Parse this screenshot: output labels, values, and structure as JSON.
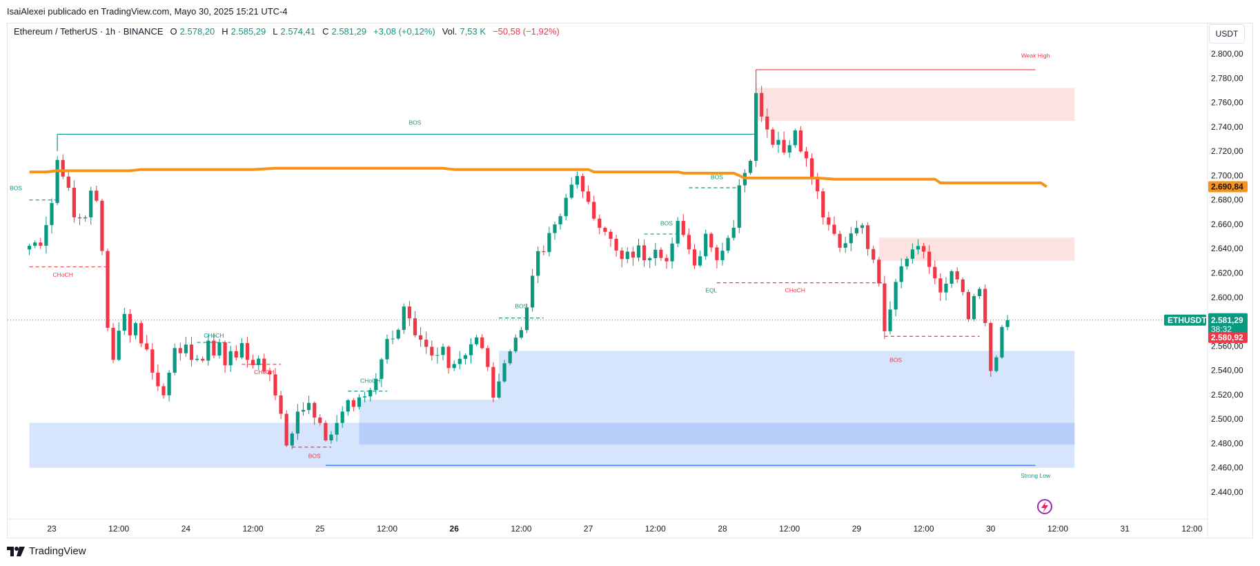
{
  "header": {
    "published_by": "IsaiAlexei publicado en TradingView.com, Mayo 30, 2025 15:21 UTC-4"
  },
  "legend": {
    "symbol": "Ethereum / TetherUS · 1h · BINANCE",
    "open_label": "O",
    "open": "2.578,20",
    "high_label": "H",
    "high": "2.585,29",
    "low_label": "L",
    "low": "2.574,41",
    "close_label": "C",
    "close": "2.581,29",
    "change": "+3,08 (+0,12%)",
    "vol_label": "Vol.",
    "vol": "7,53 K",
    "vol_change": "−50,58 (−1,92%)"
  },
  "currency_button": "USDT",
  "brand": {
    "name": "TradingView"
  },
  "colors": {
    "up": "#089981",
    "down": "#f23645",
    "ma": "#f7931a",
    "demand_zone": "#d6e4fc",
    "demand_zone_dark": "#b5cdf8",
    "supply_zone": "#fde2e2",
    "structure_bull": "#089981",
    "structure_bear": "#f23645"
  },
  "chart_data": {
    "type": "candlestick",
    "symbol": "ETHUSDT",
    "timeframe": "1h",
    "ylim": [
      2430,
      2810
    ],
    "grid": false,
    "y_ticks": [
      "2.440,00",
      "2.460,00",
      "2.480,00",
      "2.500,00",
      "2.520,00",
      "2.540,00",
      "2.560,00",
      "2.580,00",
      "2.600,00",
      "2.620,00",
      "2.640,00",
      "2.660,00",
      "2.680,00",
      "2.700,00",
      "2.720,00",
      "2.740,00",
      "2.760,00",
      "2.780,00",
      "2.800,00"
    ],
    "y_tick_values": [
      2440,
      2460,
      2480,
      2500,
      2520,
      2540,
      2560,
      2580,
      2600,
      2620,
      2640,
      2660,
      2680,
      2700,
      2720,
      2740,
      2760,
      2780,
      2800
    ],
    "x_ticks": [
      {
        "label": "23",
        "t": 0,
        "bold": false
      },
      {
        "label": "12:00",
        "t": 12,
        "bold": false
      },
      {
        "label": "24",
        "t": 24,
        "bold": false
      },
      {
        "label": "12:00",
        "t": 36,
        "bold": false
      },
      {
        "label": "25",
        "t": 48,
        "bold": false
      },
      {
        "label": "12:00",
        "t": 60,
        "bold": false
      },
      {
        "label": "26",
        "t": 72,
        "bold": true
      },
      {
        "label": "12:00",
        "t": 84,
        "bold": false
      },
      {
        "label": "27",
        "t": 96,
        "bold": false
      },
      {
        "label": "12:00",
        "t": 108,
        "bold": false
      },
      {
        "label": "28",
        "t": 120,
        "bold": false
      },
      {
        "label": "12:00",
        "t": 132,
        "bold": false
      },
      {
        "label": "29",
        "t": 144,
        "bold": false
      },
      {
        "label": "12:00",
        "t": 156,
        "bold": false
      },
      {
        "label": "30",
        "t": 168,
        "bold": false
      },
      {
        "label": "12:00",
        "t": 180,
        "bold": false
      },
      {
        "label": "31",
        "t": 192,
        "bold": false
      },
      {
        "label": "12:00",
        "t": 204,
        "bold": false
      }
    ],
    "key_points": [
      [
        -4,
        2640
      ],
      [
        -2,
        2645
      ],
      [
        0,
        2675
      ],
      [
        1,
        2715
      ],
      [
        2,
        2700
      ],
      [
        3,
        2690
      ],
      [
        4,
        2665
      ],
      [
        6,
        2668
      ],
      [
        7,
        2685
      ],
      [
        8,
        2680
      ],
      [
        9,
        2640
      ],
      [
        10,
        2575
      ],
      [
        11,
        2550
      ],
      [
        12,
        2575
      ],
      [
        13,
        2585
      ],
      [
        14,
        2570
      ],
      [
        15,
        2580
      ],
      [
        16,
        2565
      ],
      [
        17,
        2555
      ],
      [
        18,
        2540
      ],
      [
        19,
        2525
      ],
      [
        20,
        2520
      ],
      [
        21,
        2540
      ],
      [
        22,
        2558
      ],
      [
        23,
        2555
      ],
      [
        24,
        2560
      ],
      [
        25,
        2548
      ],
      [
        26,
        2552
      ],
      [
        27,
        2550
      ],
      [
        28,
        2565
      ],
      [
        29,
        2555
      ],
      [
        30,
        2560
      ],
      [
        31,
        2545
      ],
      [
        32,
        2555
      ],
      [
        33,
        2550
      ],
      [
        34,
        2560
      ],
      [
        35,
        2550
      ],
      [
        36,
        2545
      ],
      [
        37,
        2550
      ],
      [
        38,
        2540
      ],
      [
        39,
        2535
      ],
      [
        40,
        2520
      ],
      [
        41,
        2505
      ],
      [
        42,
        2480
      ],
      [
        43,
        2490
      ],
      [
        44,
        2505
      ],
      [
        45,
        2510
      ],
      [
        46,
        2515
      ],
      [
        47,
        2500
      ],
      [
        48,
        2495
      ],
      [
        49,
        2480
      ],
      [
        50,
        2485
      ],
      [
        51,
        2495
      ],
      [
        52,
        2505
      ],
      [
        53,
        2515
      ],
      [
        54,
        2510
      ],
      [
        55,
        2515
      ],
      [
        56,
        2520
      ],
      [
        57,
        2525
      ],
      [
        58,
        2535
      ],
      [
        59,
        2550
      ],
      [
        60,
        2565
      ],
      [
        61,
        2565
      ],
      [
        62,
        2575
      ],
      [
        63,
        2590
      ],
      [
        64,
        2580
      ],
      [
        65,
        2570
      ],
      [
        66,
        2565
      ],
      [
        67,
        2560
      ],
      [
        68,
        2555
      ],
      [
        69,
        2550
      ],
      [
        70,
        2560
      ],
      [
        71,
        2540
      ],
      [
        72,
        2545
      ],
      [
        73,
        2550
      ],
      [
        74,
        2555
      ],
      [
        75,
        2560
      ],
      [
        76,
        2565
      ],
      [
        77,
        2560
      ],
      [
        78,
        2540
      ],
      [
        79,
        2520
      ],
      [
        80,
        2530
      ],
      [
        81,
        2545
      ],
      [
        82,
        2555
      ],
      [
        83,
        2565
      ],
      [
        84,
        2575
      ],
      [
        85,
        2590
      ],
      [
        86,
        2620
      ],
      [
        87,
        2635
      ],
      [
        88,
        2640
      ],
      [
        89,
        2650
      ],
      [
        90,
        2660
      ],
      [
        91,
        2665
      ],
      [
        92,
        2680
      ],
      [
        93,
        2695
      ],
      [
        94,
        2700
      ],
      [
        95,
        2690
      ],
      [
        96,
        2680
      ],
      [
        97,
        2665
      ],
      [
        98,
        2660
      ],
      [
        99,
        2655
      ],
      [
        100,
        2650
      ],
      [
        101,
        2640
      ],
      [
        102,
        2630
      ],
      [
        103,
        2640
      ],
      [
        104,
        2635
      ],
      [
        105,
        2640
      ],
      [
        106,
        2630
      ],
      [
        107,
        2635
      ],
      [
        108,
        2640
      ],
      [
        109,
        2635
      ],
      [
        110,
        2630
      ],
      [
        111,
        2645
      ],
      [
        112,
        2660
      ],
      [
        113,
        2650
      ],
      [
        114,
        2640
      ],
      [
        115,
        2625
      ],
      [
        116,
        2635
      ],
      [
        117,
        2650
      ],
      [
        118,
        2640
      ],
      [
        119,
        2630
      ],
      [
        120,
        2640
      ],
      [
        121,
        2650
      ],
      [
        122,
        2660
      ],
      [
        123,
        2690
      ],
      [
        124,
        2705
      ],
      [
        125,
        2715
      ],
      [
        126,
        2770
      ],
      [
        127,
        2750
      ],
      [
        128,
        2735
      ],
      [
        129,
        2725
      ],
      [
        130,
        2730
      ],
      [
        131,
        2720
      ],
      [
        132,
        2725
      ],
      [
        133,
        2735
      ],
      [
        134,
        2720
      ],
      [
        135,
        2715
      ],
      [
        136,
        2700
      ],
      [
        137,
        2685
      ],
      [
        138,
        2665
      ],
      [
        139,
        2660
      ],
      [
        140,
        2650
      ],
      [
        141,
        2640
      ],
      [
        142,
        2645
      ],
      [
        143,
        2650
      ],
      [
        144,
        2655
      ],
      [
        145,
        2660
      ],
      [
        146,
        2640
      ],
      [
        147,
        2630
      ],
      [
        148,
        2610
      ],
      [
        149,
        2570
      ],
      [
        150,
        2590
      ],
      [
        151,
        2610
      ],
      [
        152,
        2625
      ],
      [
        153,
        2630
      ],
      [
        154,
        2640
      ],
      [
        155,
        2645
      ],
      [
        156,
        2635
      ],
      [
        157,
        2625
      ],
      [
        158,
        2615
      ],
      [
        159,
        2605
      ],
      [
        160,
        2610
      ],
      [
        161,
        2620
      ],
      [
        162,
        2615
      ],
      [
        163,
        2605
      ],
      [
        164,
        2580
      ],
      [
        165,
        2600
      ],
      [
        166,
        2610
      ],
      [
        167,
        2580
      ],
      [
        168,
        2540
      ],
      [
        169,
        2548
      ],
      [
        170,
        2575
      ],
      [
        171,
        2581.29
      ]
    ],
    "ma_line": [
      [
        -4,
        2703
      ],
      [
        -1,
        2703
      ],
      [
        1,
        2704
      ],
      [
        14,
        2704
      ],
      [
        16,
        2705
      ],
      [
        36,
        2705
      ],
      [
        40,
        2706
      ],
      [
        70,
        2706
      ],
      [
        72,
        2705
      ],
      [
        96,
        2705
      ],
      [
        97,
        2703
      ],
      [
        112,
        2703
      ],
      [
        113,
        2702
      ],
      [
        122,
        2702
      ],
      [
        124,
        2698
      ],
      [
        137,
        2698
      ],
      [
        140,
        2697
      ],
      [
        158,
        2697
      ],
      [
        159,
        2694
      ],
      [
        177,
        2694
      ],
      [
        178,
        2690.84
      ]
    ],
    "zones": [
      {
        "type": "demand",
        "t0": -4,
        "t1": 183,
        "top": 2497,
        "bottom": 2460
      },
      {
        "type": "demand",
        "t0": 80,
        "t1": 183,
        "top": 2556,
        "bottom": 2509
      },
      {
        "type": "demand",
        "t0": 55,
        "t1": 183,
        "top": 2516,
        "bottom": 2479,
        "dark": false
      },
      {
        "type": "demand_overlap",
        "t0": 55,
        "t1": 183,
        "top": 2497,
        "bottom": 2479
      },
      {
        "type": "supply",
        "t0": 126,
        "t1": 183,
        "top": 2772,
        "bottom": 2745
      },
      {
        "type": "supply",
        "t0": 148,
        "t1": 183,
        "top": 2649,
        "bottom": 2630
      }
    ],
    "structure_lines": [
      {
        "kind": "solid",
        "dir": "bull",
        "t0": 1,
        "t1": 126,
        "price": 2734
      },
      {
        "kind": "dashed",
        "dir": "bull",
        "t0": -4,
        "t1": 1,
        "price": 2680
      },
      {
        "kind": "dashed",
        "dir": "bear",
        "t0": -4,
        "t1": 10,
        "price": 2625
      },
      {
        "kind": "dashed",
        "dir": "bull",
        "t0": 26,
        "t1": 32,
        "price": 2563
      },
      {
        "kind": "dashed",
        "dir": "bear",
        "t0": 34,
        "t1": 41,
        "price": 2545
      },
      {
        "kind": "dashed",
        "dir": "bear",
        "t0": 43,
        "t1": 50,
        "price": 2477
      },
      {
        "kind": "dashed",
        "dir": "bull",
        "t0": 53,
        "t1": 60,
        "price": 2523
      },
      {
        "kind": "dashed",
        "dir": "bull",
        "t0": 80,
        "t1": 88,
        "price": 2583
      },
      {
        "kind": "dashed",
        "dir": "bull",
        "t0": 106,
        "t1": 114,
        "price": 2652
      },
      {
        "kind": "dashed",
        "dir": "bull",
        "t0": 114,
        "t1": 123,
        "price": 2690
      },
      {
        "kind": "dashed",
        "dir": "bear",
        "t0": 119,
        "t1": 149,
        "price": 2612
      },
      {
        "kind": "dashed",
        "dir": "bear",
        "t0": 149,
        "t1": 166,
        "price": 2568
      },
      {
        "kind": "solid",
        "dir": "bear",
        "t0": 126,
        "t1": 176,
        "price": 2787
      },
      {
        "kind": "solid",
        "dir": "neutral",
        "t0": 49,
        "t1": 176,
        "price": 2462
      }
    ],
    "labels": [
      {
        "text": "BOS",
        "t": -4,
        "price": 2688,
        "color": "bull"
      },
      {
        "text": "CHoCH",
        "t": 2,
        "price": 2617,
        "color": "bear"
      },
      {
        "text": "BOS",
        "t": 65,
        "price": 2742,
        "color": "bull"
      },
      {
        "text": "CHoCH",
        "t": 29,
        "price": 2567,
        "color": "bull"
      },
      {
        "text": "CHoCH",
        "t": 38,
        "price": 2537,
        "color": "bear"
      },
      {
        "text": "BOS",
        "t": 47,
        "price": 2468,
        "color": "bear"
      },
      {
        "text": "CHoCH",
        "t": 57,
        "price": 2530,
        "color": "bull"
      },
      {
        "text": "BOS",
        "t": 84,
        "price": 2591,
        "color": "bull"
      },
      {
        "text": "BOS",
        "t": 110,
        "price": 2659,
        "color": "bull"
      },
      {
        "text": "BOS",
        "t": 119,
        "price": 2697,
        "color": "bull"
      },
      {
        "text": "EQL",
        "t": 118,
        "price": 2604,
        "color": "bull"
      },
      {
        "text": "CHoCH",
        "t": 133,
        "price": 2604,
        "color": "bear"
      },
      {
        "text": "BOS",
        "t": 151,
        "price": 2547,
        "color": "bear"
      },
      {
        "text": "Weak High",
        "t": 176,
        "price": 2797,
        "color": "bear"
      },
      {
        "text": "Strong Low",
        "t": 176,
        "price": 2452,
        "color": "bull"
      }
    ],
    "price_tags": [
      {
        "label": "2.690,84",
        "value": 2690.84,
        "style": "ma"
      },
      {
        "name": "ETHUSDT",
        "label": "2.581,29",
        "countdown": "38:32",
        "value": 2581.29,
        "style": "last"
      },
      {
        "label": "2.580,92",
        "value": 2579,
        "style": "red"
      }
    ]
  }
}
